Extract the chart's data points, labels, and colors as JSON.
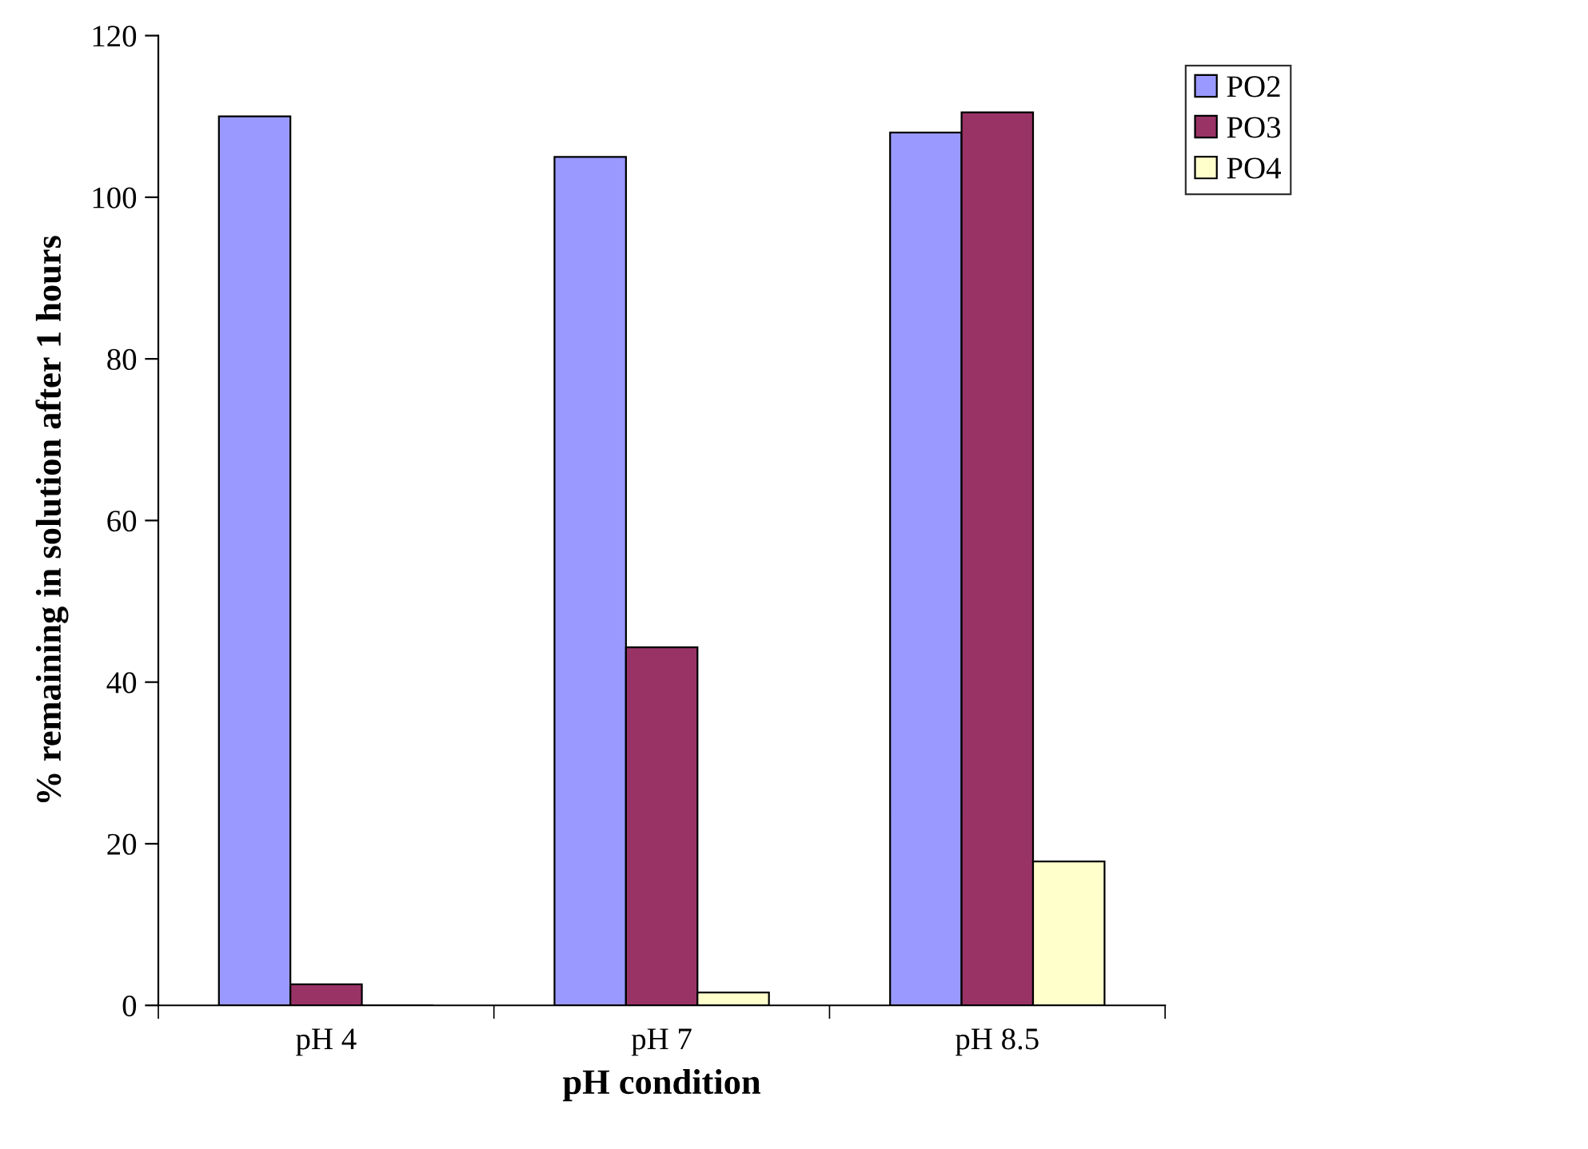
{
  "chart_data": {
    "type": "bar",
    "xlabel": "pH condition",
    "ylabel": "% remaining in solution after 1 hours",
    "categories": [
      "pH 4",
      "pH 7",
      "pH 8.5"
    ],
    "series": [
      {
        "name": "PO2",
        "color": "#9999ff",
        "values": [
          110,
          105,
          108
        ]
      },
      {
        "name": "PO3",
        "color": "#993366",
        "values": [
          2.6,
          44.3,
          110.5
        ]
      },
      {
        "name": "PO4",
        "color": "#ffffcc",
        "values": [
          0,
          1.6,
          17.8
        ]
      }
    ],
    "ylim": [
      0,
      120
    ],
    "yticks": [
      0,
      20,
      40,
      60,
      80,
      100,
      120
    ],
    "grid": false,
    "legend": "top right"
  }
}
